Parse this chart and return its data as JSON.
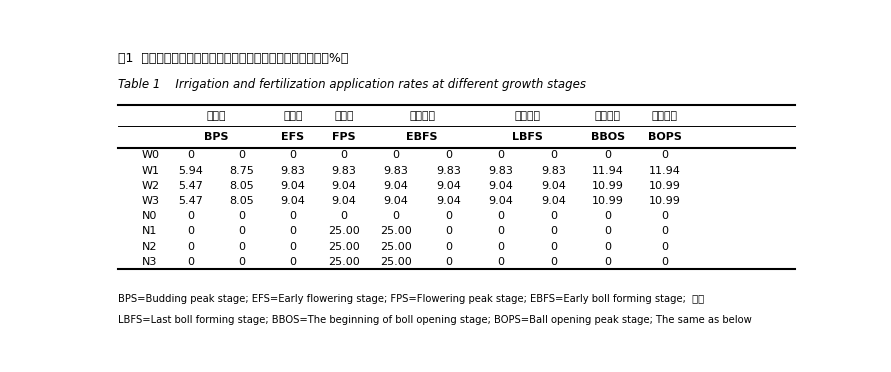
{
  "title_cn": "表1  不同生育期滴水量和施肥量占总滴水量和施肥量的比例（%）",
  "title_en": "Table 1    Irrigation and fertilization application rates at different growth stages",
  "col_headers_cn": [
    "盛蕾期",
    "开花期",
    "盛花期",
    "盛铃始期",
    "盛铃末期",
    "吐絮初期",
    "吐絮盛期"
  ],
  "col_headers_en": [
    "BPS",
    "EFS",
    "FPS",
    "EBFS",
    "LBFS",
    "BBOS",
    "BOPS"
  ],
  "rows": [
    [
      "W0",
      "0",
      "0",
      "0",
      "0",
      "0",
      "0",
      "0",
      "0",
      "0",
      "0"
    ],
    [
      "W1",
      "5.94",
      "8.75",
      "9.83",
      "9.83",
      "9.83",
      "9.83",
      "9.83",
      "9.83",
      "11.94",
      "11.94"
    ],
    [
      "W2",
      "5.47",
      "8.05",
      "9.04",
      "9.04",
      "9.04",
      "9.04",
      "9.04",
      "9.04",
      "10.99",
      "10.99"
    ],
    [
      "W3",
      "5.47",
      "8.05",
      "9.04",
      "9.04",
      "9.04",
      "9.04",
      "9.04",
      "9.04",
      "10.99",
      "10.99"
    ],
    [
      "N0",
      "0",
      "0",
      "0",
      "0",
      "0",
      "0",
      "0",
      "0",
      "0",
      "0"
    ],
    [
      "N1",
      "0",
      "0",
      "0",
      "25.00",
      "25.00",
      "0",
      "0",
      "0",
      "0",
      "0"
    ],
    [
      "N2",
      "0",
      "0",
      "0",
      "25.00",
      "25.00",
      "0",
      "0",
      "0",
      "0",
      "0"
    ],
    [
      "N3",
      "0",
      "0",
      "0",
      "25.00",
      "25.00",
      "0",
      "0",
      "0",
      "0",
      "0"
    ]
  ],
  "footnote1": "BPS=Budding peak stage; EFS=Early flowering stage; FPS=Flowering peak stage; EBFS=Early boll forming stage;  下同",
  "footnote2": "LBFS=Last boll forming stage; BBOS=The beginning of boll opening stage; BOPS=Ball opening peak stage; The same as below",
  "bg_color": "#ffffff",
  "text_color": "#000000",
  "line_color": "#000000"
}
